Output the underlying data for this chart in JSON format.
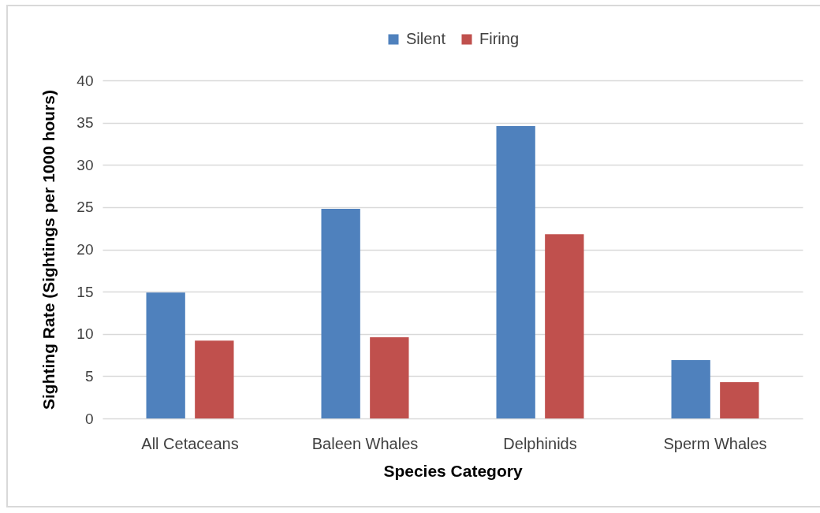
{
  "chart_data": {
    "type": "bar",
    "xlabel": "Species Category",
    "ylabel": "Sighting Rate (Sightings per 1000 hours)",
    "categories": [
      "All Cetaceans",
      "Baleen Whales",
      "Delphinids",
      "Sperm Whales"
    ],
    "series": [
      {
        "name": "Silent",
        "color": "#4f81bd",
        "values": [
          14.9,
          24.8,
          34.6,
          6.9
        ]
      },
      {
        "name": "Firing",
        "color": "#c0504d",
        "values": [
          9.2,
          9.6,
          21.8,
          4.3
        ]
      }
    ],
    "ylim": [
      0,
      40
    ],
    "yticks": [
      0,
      5,
      10,
      15,
      20,
      25,
      30,
      35,
      40
    ],
    "grid": "y",
    "legend": "top"
  }
}
